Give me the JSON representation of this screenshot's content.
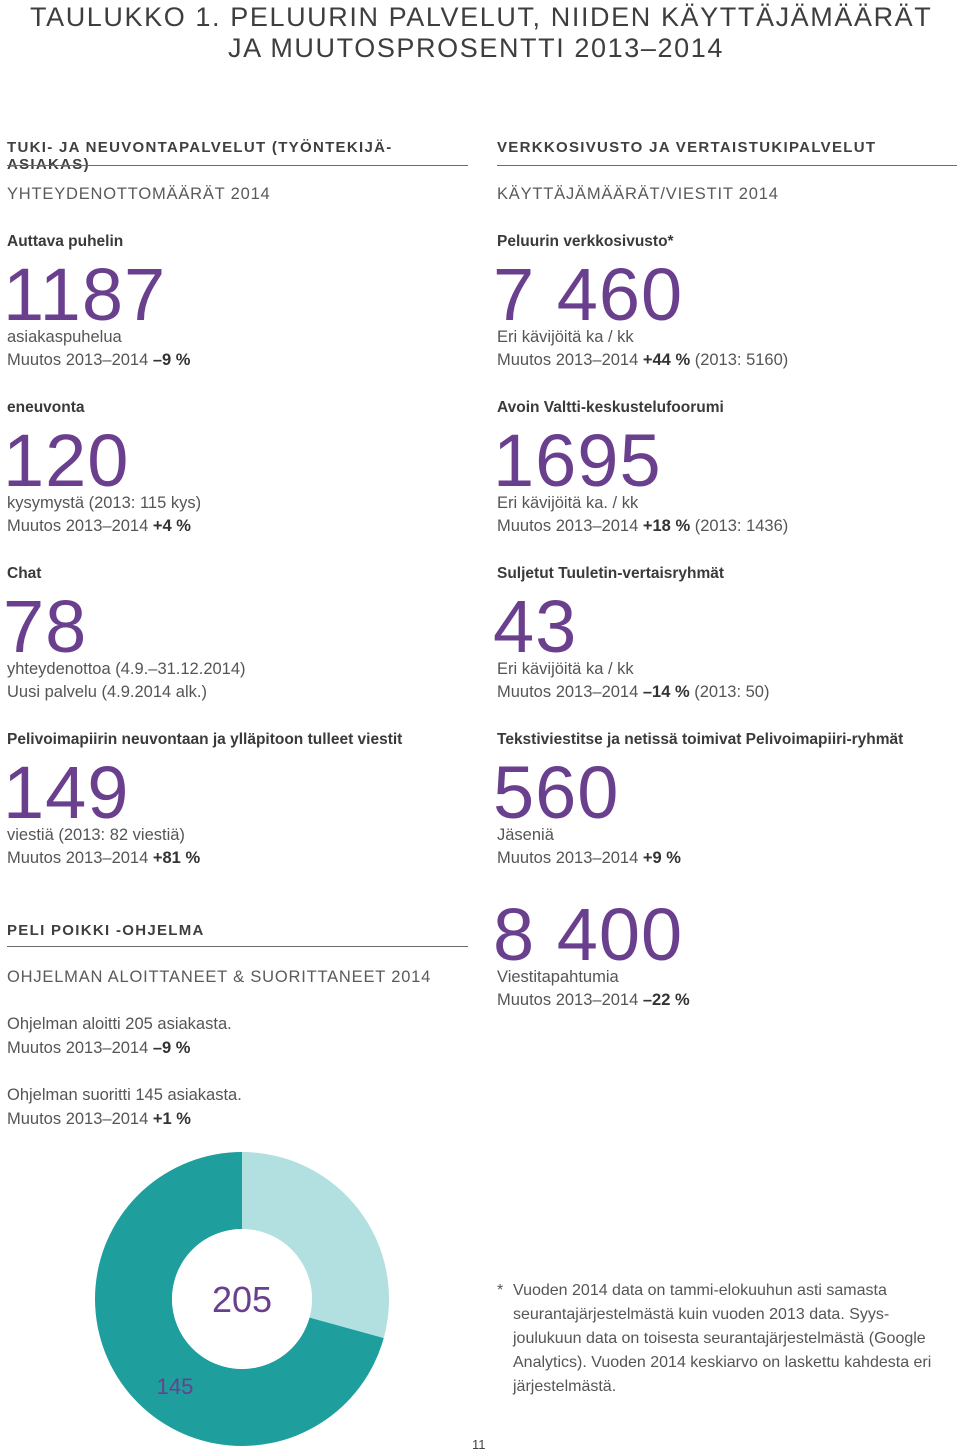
{
  "title": {
    "line1": "TAULUKKO 1. PELUURIN PALVELUT, NIIDEN KÄYTTÄJÄMÄÄRÄT",
    "line2": "JA MUUTOSPROSENTTI 2013–2014"
  },
  "left": {
    "heading": "TUKI- JA NEUVONTAPALVELUT (TYÖNTEKIJÄ-ASIAKAS)",
    "subheading": "YHTEYDENOTTOMÄÄRÄT 2014",
    "stats": [
      {
        "label": "Auttava puhelin",
        "value": "1187",
        "desc": "asiakaspuhelua",
        "change_prefix": "Muutos 2013–2014 ",
        "change": "–9 %",
        "change_suffix": ""
      },
      {
        "label": "eneuvonta",
        "value": "120",
        "desc": "kysymystä (2013: 115 kys)",
        "change_prefix": "Muutos 2013–2014 ",
        "change": "+4 %",
        "change_suffix": ""
      },
      {
        "label": "Chat",
        "value": "78",
        "desc": "yhteydenottoa (4.9.–31.12.2014)",
        "change_prefix": "Uusi palvelu (4.9.2014 alk.)",
        "change": "",
        "change_suffix": ""
      },
      {
        "label": "Pelivoimapiirin neuvontaan ja ylläpitoon tulleet viestit",
        "value": "149",
        "desc": "viestiä (2013: 82 viestiä)",
        "change_prefix": "Muutos 2013–2014 ",
        "change": "+81 %",
        "change_suffix": ""
      }
    ],
    "peli": {
      "heading": "PELI POIKKI -OHJELMA",
      "subheading": "OHJELMAN ALOITTANEET & SUORITTANEET 2014",
      "started_text": "Ohjelman aloitti 205 asiakasta.",
      "started_change_prefix": "Muutos 2013–2014 ",
      "started_change": "–9 %",
      "completed_text": "Ohjelman suoritti 145 asiakasta.",
      "completed_change_prefix": "Muutos 2013–2014 ",
      "completed_change": "+1 %"
    }
  },
  "right": {
    "heading": "VERKKOSIVUSTO JA VERTAISTUKIPALVELUT",
    "subheading": "KÄYTTÄJÄMÄÄRÄT/VIESTIT 2014",
    "stats": [
      {
        "label": "Peluurin verkkosivusto*",
        "value": "7 460",
        "desc": "Eri kävijöitä ka / kk",
        "change_prefix": "Muutos 2013–2014 ",
        "change": "+44 %",
        "change_suffix": " (2013: 5160)"
      },
      {
        "label": "Avoin Valtti-keskustelufoorumi",
        "value": "1695",
        "desc": "Eri kävijöitä ka. / kk",
        "change_prefix": "Muutos 2013–2014 ",
        "change": "+18 %",
        "change_suffix": " (2013: 1436)"
      },
      {
        "label": "Suljetut Tuuletin-vertaisryhmät",
        "value": "43",
        "desc": "Eri kävijöitä ka / kk",
        "change_prefix": "Muutos 2013–2014 ",
        "change": "–14 %",
        "change_suffix": " (2013: 50)"
      },
      {
        "label": "Tekstiviestitse ja netissä toimivat Pelivoimapiiri-ryhmät",
        "value": "560",
        "desc": "Jäseniä",
        "change_prefix": "Muutos 2013–2014 ",
        "change": "+9 %",
        "change_suffix": ""
      },
      {
        "label": "",
        "value": "8 400",
        "desc": "Viestitapahtumia",
        "change_prefix": "Muutos 2013–2014 ",
        "change": "–22 %",
        "change_suffix": ""
      }
    ]
  },
  "chart_data": {
    "type": "pie",
    "categories": [
      "145",
      "205"
    ],
    "values": [
      145,
      60
    ],
    "total_label": "205",
    "slice_label": "145",
    "colors": [
      "#1f9e9e",
      "#b2dfdf"
    ]
  },
  "footnote": {
    "star": "*",
    "text": "Vuoden 2014 data on tammi-elokuuhun asti samasta seurantajärjestelmästä kuin vuoden 2013 data. Syys-joulukuun data on toisesta seurantajärjestelmästä (Google Analytics). Vuoden 2014 keskiarvo on laskettu kahdesta eri järjestelmästä."
  },
  "page_number": "11",
  "colors": {
    "accent": "#6a3f8e",
    "teal": "#1f9e9e",
    "teal_light": "#b2dfdf"
  }
}
